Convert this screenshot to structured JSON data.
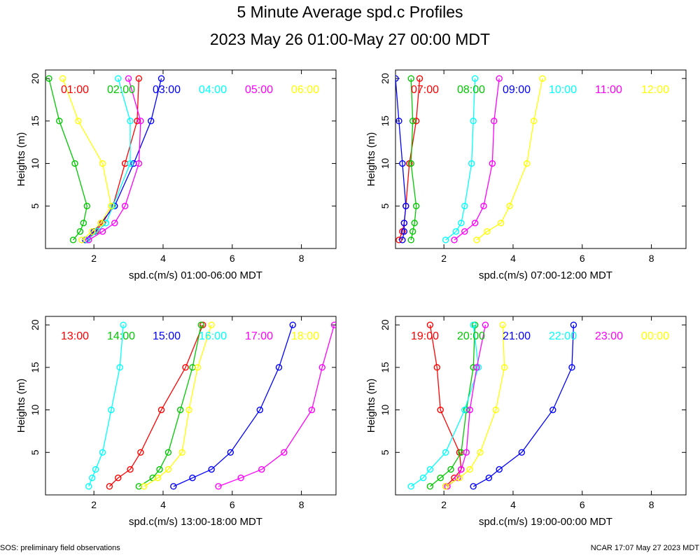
{
  "page": {
    "title": "5 Minute Average spd.c Profiles",
    "subtitle": "2023 May 26 01:00-May 27 00:00 MDT",
    "footer_left": "SOS: preliminary field observations",
    "footer_right": "NCAR 17:07 May 27 2023 MDT"
  },
  "colors": [
    "#ff0000",
    "#00c800",
    "#0000ff",
    "#00ffff",
    "#ff00ff",
    "#ffff00"
  ],
  "chart_data": [
    {
      "type": "line",
      "xlabel": "spd.c(m/s) 01:00-06:00 MDT",
      "ylabel": "Heights (m)",
      "xlim": [
        0.6,
        9
      ],
      "ylim": [
        0,
        21
      ],
      "xticks": [
        2,
        4,
        6,
        8
      ],
      "yticks": [
        5,
        10,
        15,
        20
      ],
      "heights": [
        1,
        2,
        3,
        5,
        10,
        15,
        20
      ],
      "series": [
        {
          "name": "01:00",
          "values": [
            1.8,
            2.05,
            2.25,
            2.55,
            2.9,
            3.25,
            3.3
          ]
        },
        {
          "name": "02:00",
          "values": [
            1.4,
            1.6,
            1.7,
            1.8,
            1.45,
            1.0,
            0.7
          ]
        },
        {
          "name": "03:00",
          "values": [
            1.75,
            2.0,
            2.2,
            2.6,
            3.15,
            3.65,
            3.95
          ]
        },
        {
          "name": "04:00",
          "values": [
            1.8,
            2.1,
            2.35,
            2.55,
            3.05,
            3.05,
            2.7
          ]
        },
        {
          "name": "05:00",
          "values": [
            1.85,
            2.25,
            2.6,
            2.9,
            3.3,
            3.35,
            3.0
          ]
        },
        {
          "name": "06:00",
          "values": [
            1.65,
            1.95,
            2.2,
            2.5,
            2.25,
            1.55,
            1.1
          ]
        }
      ]
    },
    {
      "type": "line",
      "xlabel": "spd.c(m/s) 07:00-12:00 MDT",
      "ylabel": "Heights (m)",
      "xlim": [
        0.6,
        9
      ],
      "ylim": [
        0,
        21
      ],
      "xticks": [
        2,
        4,
        6,
        8
      ],
      "yticks": [
        5,
        10,
        15,
        20
      ],
      "heights": [
        1,
        2,
        3,
        5,
        10,
        15,
        20
      ],
      "series": [
        {
          "name": "07:00",
          "values": [
            0.7,
            0.8,
            0.85,
            0.9,
            1.0,
            1.2,
            1.3
          ]
        },
        {
          "name": "08:00",
          "values": [
            1.05,
            1.1,
            1.15,
            1.2,
            1.05,
            1.1,
            1.05
          ]
        },
        {
          "name": "09:00",
          "values": [
            0.8,
            0.85,
            0.85,
            0.9,
            0.8,
            0.7,
            0.6
          ]
        },
        {
          "name": "10:00",
          "values": [
            2.05,
            2.35,
            2.5,
            2.6,
            2.8,
            2.85,
            2.9
          ]
        },
        {
          "name": "11:00",
          "values": [
            2.3,
            2.6,
            2.9,
            3.15,
            3.4,
            3.45,
            3.6
          ]
        },
        {
          "name": "12:00",
          "values": [
            2.95,
            3.25,
            3.65,
            3.9,
            4.4,
            4.6,
            4.85
          ]
        }
      ]
    },
    {
      "type": "line",
      "xlabel": "spd.c(m/s) 13:00-18:00 MDT",
      "ylabel": "Heights (m)",
      "xlim": [
        0.6,
        9
      ],
      "ylim": [
        0,
        21
      ],
      "xticks": [
        2,
        4,
        6,
        8
      ],
      "yticks": [
        5,
        10,
        15,
        20
      ],
      "heights": [
        1,
        2,
        3,
        5,
        10,
        15,
        20
      ],
      "series": [
        {
          "name": "13:00",
          "values": [
            2.45,
            2.7,
            3.05,
            3.35,
            3.95,
            4.65,
            5.15
          ]
        },
        {
          "name": "14:00",
          "values": [
            3.3,
            3.7,
            3.9,
            4.15,
            4.5,
            4.85,
            5.1
          ]
        },
        {
          "name": "15:00",
          "values": [
            4.3,
            4.85,
            5.4,
            5.95,
            6.8,
            7.35,
            7.75
          ]
        },
        {
          "name": "16:00",
          "values": [
            1.85,
            1.95,
            2.05,
            2.25,
            2.5,
            2.75,
            2.85
          ]
        },
        {
          "name": "17:00",
          "values": [
            5.6,
            6.25,
            6.85,
            7.5,
            8.3,
            8.6,
            8.95
          ]
        },
        {
          "name": "18:00",
          "values": [
            3.45,
            3.85,
            4.15,
            4.55,
            4.75,
            5.0,
            5.4
          ]
        }
      ]
    },
    {
      "type": "line",
      "xlabel": "spd.c(m/s) 19:00-00:00 MDT",
      "ylabel": "Heights (m)",
      "xlim": [
        0.6,
        9
      ],
      "ylim": [
        0,
        21
      ],
      "xticks": [
        2,
        4,
        6,
        8
      ],
      "yticks": [
        5,
        10,
        15,
        20
      ],
      "heights": [
        1,
        2,
        3,
        5,
        10,
        15,
        20
      ],
      "series": [
        {
          "name": "19:00",
          "values": [
            2.05,
            2.3,
            2.5,
            2.45,
            1.9,
            1.8,
            1.6
          ]
        },
        {
          "name": "20:00",
          "values": [
            1.6,
            1.9,
            2.2,
            2.5,
            2.65,
            2.85,
            2.9
          ]
        },
        {
          "name": "21:00",
          "values": [
            2.85,
            3.3,
            3.6,
            4.25,
            5.15,
            5.7,
            5.75
          ]
        },
        {
          "name": "22:00",
          "values": [
            1.05,
            1.4,
            1.6,
            2.05,
            2.6,
            3.0,
            2.85
          ]
        },
        {
          "name": "23:00",
          "values": [
            2.1,
            2.4,
            2.5,
            2.65,
            2.75,
            2.95,
            3.2
          ]
        },
        {
          "name": "00:00",
          "values": [
            2.05,
            2.45,
            2.75,
            3.05,
            3.5,
            3.75,
            3.7
          ]
        }
      ]
    }
  ]
}
